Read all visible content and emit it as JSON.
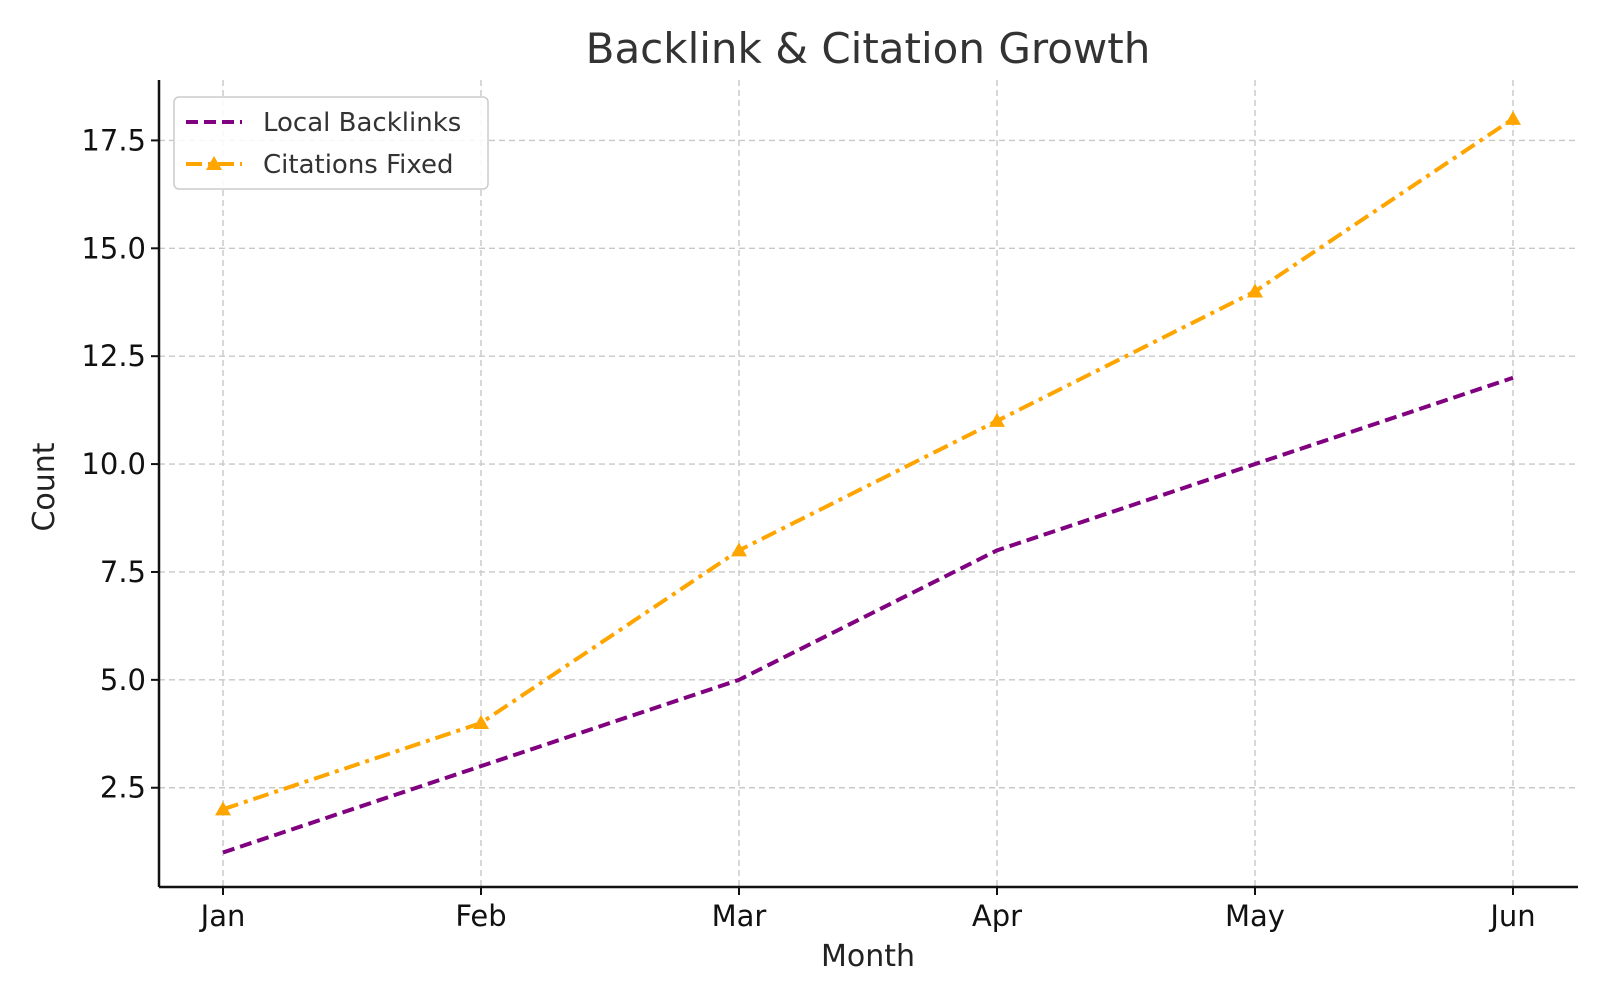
{
  "chart_data": {
    "type": "line",
    "title": "Backlink & Citation Growth",
    "xlabel": "Month",
    "ylabel": "Count",
    "categories": [
      "Jan",
      "Feb",
      "Mar",
      "Apr",
      "May",
      "Jun"
    ],
    "ylim": [
      0.2,
      18.9
    ],
    "yticks": [
      2.5,
      5.0,
      7.5,
      10.0,
      12.5,
      15.0,
      17.5
    ],
    "ytick_labels": [
      "2.5",
      "5.0",
      "7.5",
      "10.0",
      "12.5",
      "15.0",
      "17.5"
    ],
    "grid": true,
    "legend_position": "top-left",
    "series": [
      {
        "name": "Local Backlinks",
        "values": [
          1,
          3,
          5,
          8,
          10,
          12
        ],
        "color": "#800080",
        "line_style": "dashed",
        "marker": "none"
      },
      {
        "name": "Citations Fixed",
        "values": [
          2,
          4,
          8,
          11,
          14,
          18
        ],
        "color": "#FFA500",
        "line_style": "dash-dot",
        "marker": "triangle"
      }
    ]
  }
}
